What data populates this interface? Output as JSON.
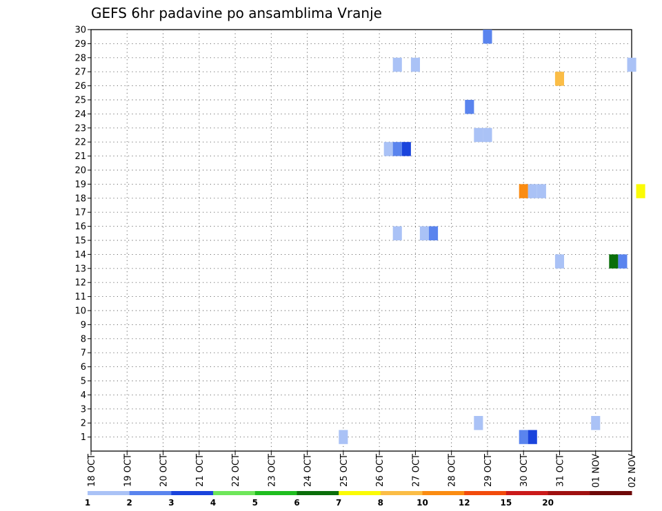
{
  "chart_data": {
    "type": "heatmap",
    "title": "GEFS 6hr padavine po ansamblima Vranje",
    "y_ticks": [
      1,
      2,
      3,
      4,
      5,
      6,
      7,
      8,
      9,
      10,
      11,
      12,
      13,
      14,
      15,
      16,
      17,
      18,
      19,
      20,
      21,
      22,
      23,
      24,
      25,
      26,
      27,
      28,
      29,
      30
    ],
    "x_ticks": [
      "18 OCT",
      "19 OCT",
      "20 OCT",
      "21 OCT",
      "22 OCT",
      "23 OCT",
      "24 OCT",
      "25 OCT",
      "26 OCT",
      "27 OCT",
      "28 OCT",
      "29 OCT",
      "30 OCT",
      "31 OCT",
      "01 NOV",
      "02 NOV"
    ],
    "x_range": [
      "18 OCT 00",
      "02 NOV 00"
    ],
    "y_range": [
      0,
      30
    ],
    "grid": true,
    "step_hours": 6,
    "cells": [
      {
        "time": "25 OCT 00",
        "member": 1,
        "level": 1
      },
      {
        "time": "26 OCT 12",
        "member": 27.5,
        "level": 1
      },
      {
        "time": "27 OCT 00",
        "member": 27.5,
        "level": 1
      },
      {
        "time": "29 OCT 00",
        "member": 29.5,
        "level": 2
      },
      {
        "time": "02 NOV 00",
        "member": 27.5,
        "level": 1
      },
      {
        "time": "31 OCT 00",
        "member": 26.5,
        "level": 8
      },
      {
        "time": "28 OCT 12",
        "member": 24.5,
        "level": 2
      },
      {
        "time": "28 OCT 18",
        "member": 22.5,
        "level": 1
      },
      {
        "time": "29 OCT 00",
        "member": 22.5,
        "level": 1
      },
      {
        "time": "26 OCT 06",
        "member": 21.5,
        "level": 1
      },
      {
        "time": "26 OCT 12",
        "member": 21.5,
        "level": 2
      },
      {
        "time": "26 OCT 18",
        "member": 21.5,
        "level": 3
      },
      {
        "time": "30 OCT 00",
        "member": 18.5,
        "level": 9
      },
      {
        "time": "30 OCT 06",
        "member": 18.5,
        "level": 1
      },
      {
        "time": "30 OCT 12",
        "member": 18.5,
        "level": 1
      },
      {
        "time": "02 NOV 06",
        "member": 18.5,
        "level": 7
      },
      {
        "time": "26 OCT 12",
        "member": 15.5,
        "level": 1
      },
      {
        "time": "27 OCT 06",
        "member": 15.5,
        "level": 1
      },
      {
        "time": "27 OCT 12",
        "member": 15.5,
        "level": 2
      },
      {
        "time": "31 OCT 00",
        "member": 13.5,
        "level": 1
      },
      {
        "time": "01 NOV 12",
        "member": 13.5,
        "level": 6
      },
      {
        "time": "01 NOV 18",
        "member": 13.5,
        "level": 2
      },
      {
        "time": "28 OCT 18",
        "member": 2,
        "level": 1
      },
      {
        "time": "01 NOV 00",
        "member": 2,
        "level": 1
      },
      {
        "time": "30 OCT 00",
        "member": 1,
        "level": 2
      },
      {
        "time": "30 OCT 06",
        "member": 1,
        "level": 3
      }
    ],
    "colorbar": {
      "colors": [
        "#aac2f6",
        "#5a84ee",
        "#1a44dc",
        "#6ee65a",
        "#1fbe1f",
        "#0a6e0a",
        "#fbfb05",
        "#fbbd46",
        "#fb8c12",
        "#f24b0c",
        "#cb1a1a",
        "#a01010",
        "#6e0808"
      ],
      "labels": [
        "1",
        "2",
        "3",
        "4",
        "5",
        "6",
        "7",
        "8",
        "10",
        "12",
        "15",
        "20"
      ]
    }
  }
}
